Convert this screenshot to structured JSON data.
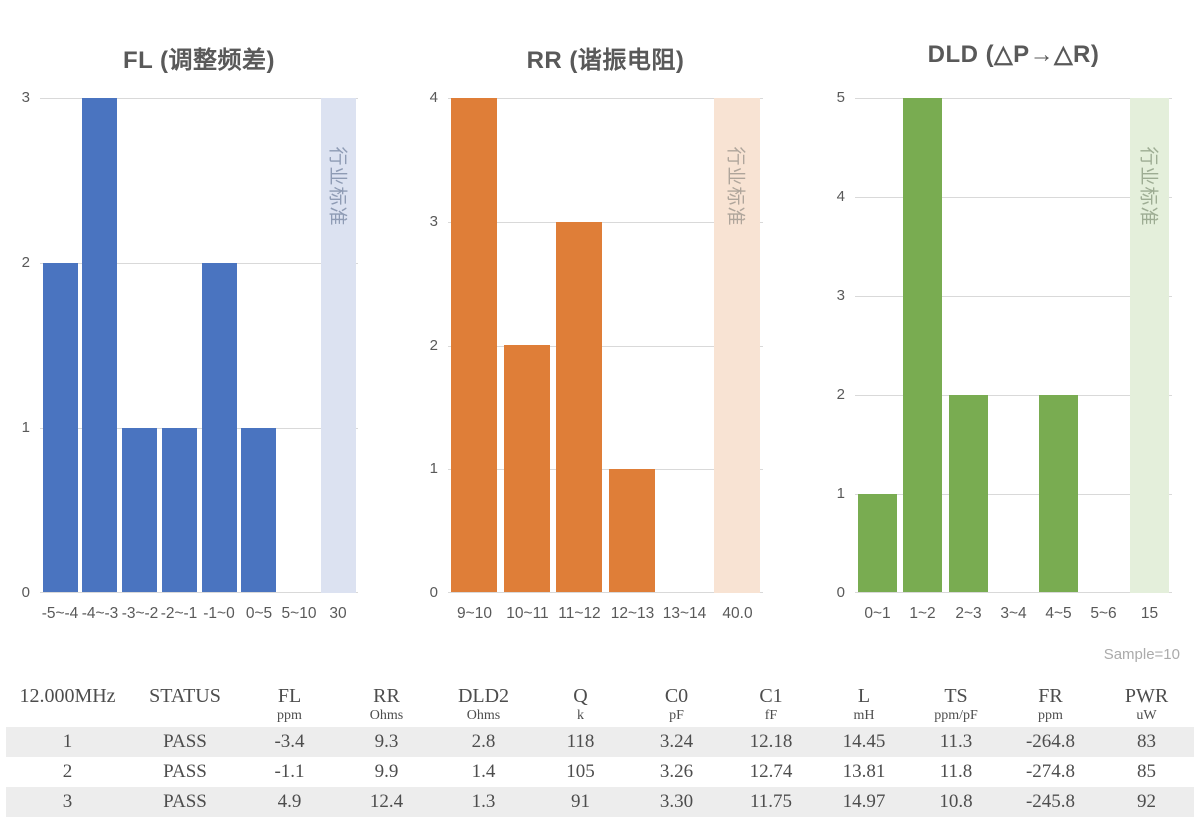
{
  "chart_data": [
    {
      "type": "bar",
      "title": "FL (调整频差)",
      "categories": [
        "-5~-4",
        "-4~-3",
        "-3~-2",
        "-2~-1",
        "-1~0",
        "0~5",
        "5~10",
        "30"
      ],
      "values": [
        2,
        3,
        1,
        1,
        2,
        1,
        0,
        0
      ],
      "band_index": 7,
      "band_label": "行业标准",
      "xlabel": "",
      "ylabel": "",
      "ylim": [
        0,
        3
      ],
      "yticks": [
        0,
        1,
        2,
        3
      ],
      "grid": true,
      "legend": "none",
      "colors": {
        "bar": "#4A74C0",
        "band": "#DCE2F1",
        "band_text": "#8E9BB4"
      }
    },
    {
      "type": "bar",
      "title": "RR (谐振电阻)",
      "categories": [
        "9~10",
        "10~11",
        "11~12",
        "12~13",
        "13~14",
        "40.0"
      ],
      "values": [
        4,
        2,
        3,
        1,
        0,
        0
      ],
      "band_index": 5,
      "band_label": "行业标准",
      "xlabel": "",
      "ylabel": "",
      "ylim": [
        0,
        4
      ],
      "yticks": [
        0,
        1,
        2,
        3,
        4
      ],
      "grid": true,
      "legend": "none",
      "colors": {
        "bar": "#DF7E38",
        "band": "#F8E3D3",
        "band_text": "#AFA59B"
      }
    },
    {
      "type": "bar",
      "title": "DLD (△P→△R)",
      "categories": [
        "0~1",
        "1~2",
        "2~3",
        "3~4",
        "4~5",
        "5~6",
        "15"
      ],
      "values": [
        1,
        5,
        2,
        0,
        2,
        0,
        0
      ],
      "band_index": 6,
      "band_label": "行业标准",
      "xlabel": "",
      "ylabel": "",
      "ylim": [
        0,
        5
      ],
      "yticks": [
        0,
        1,
        2,
        3,
        4,
        5
      ],
      "grid": true,
      "legend": "none",
      "colors": {
        "bar": "#79AC51",
        "band": "#E4EFDB",
        "band_text": "#9DAC93"
      }
    }
  ],
  "table": {
    "sample_note": "Sample=10",
    "header": [
      {
        "label": "12.000MHz",
        "unit": ""
      },
      {
        "label": "STATUS",
        "unit": ""
      },
      {
        "label": "FL",
        "unit": "ppm"
      },
      {
        "label": "RR",
        "unit": "Ohms"
      },
      {
        "label": "DLD2",
        "unit": "Ohms"
      },
      {
        "label": "Q",
        "unit": "k"
      },
      {
        "label": "C0",
        "unit": "pF"
      },
      {
        "label": "C1",
        "unit": "fF"
      },
      {
        "label": "L",
        "unit": "mH"
      },
      {
        "label": "TS",
        "unit": "ppm/pF"
      },
      {
        "label": "FR",
        "unit": "ppm"
      },
      {
        "label": "PWR",
        "unit": "uW"
      }
    ],
    "rows": [
      [
        "1",
        "PASS",
        "-3.4",
        "9.3",
        "2.8",
        "118",
        "3.24",
        "12.18",
        "14.45",
        "11.3",
        "-264.8",
        "83"
      ],
      [
        "2",
        "PASS",
        "-1.1",
        "9.9",
        "1.4",
        "105",
        "3.26",
        "12.74",
        "13.81",
        "11.8",
        "-274.8",
        "85"
      ],
      [
        "3",
        "PASS",
        "4.9",
        "12.4",
        "1.3",
        "91",
        "3.30",
        "11.75",
        "14.97",
        "10.8",
        "-245.8",
        "92"
      ]
    ]
  }
}
